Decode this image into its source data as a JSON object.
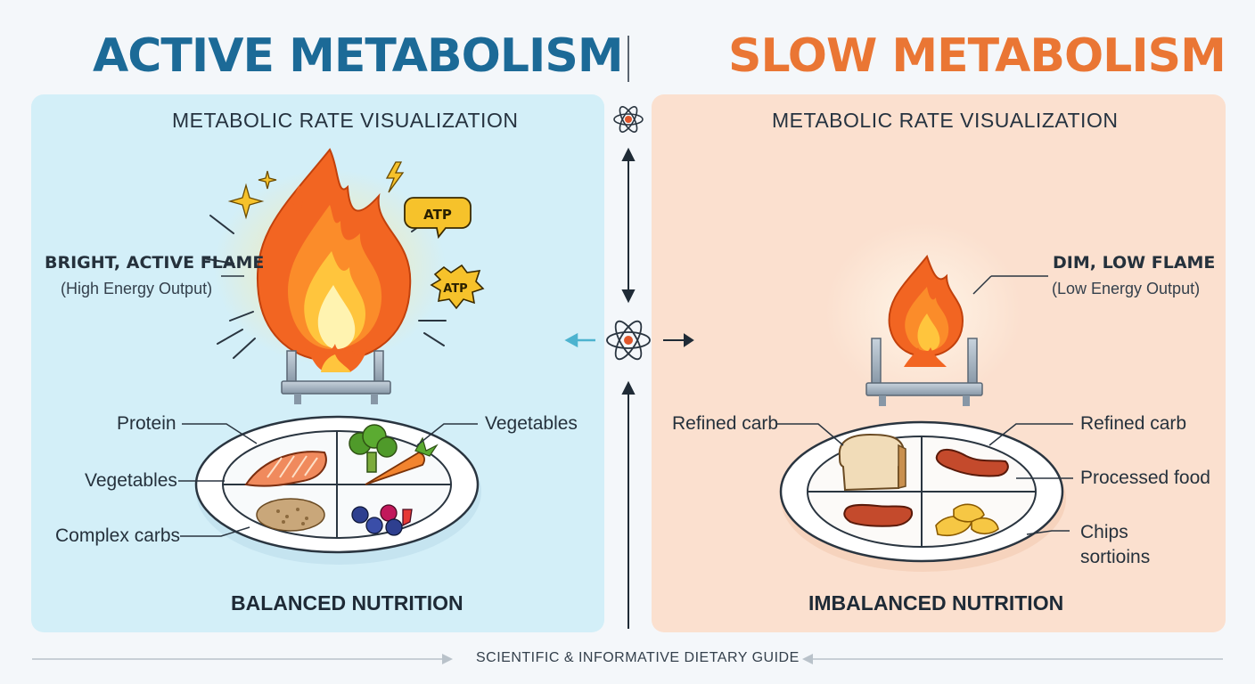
{
  "titles": {
    "left": "ACTIVE METABOLISM",
    "right": "SLOW METABOLISM"
  },
  "colors": {
    "active": "#1c6a97",
    "slow": "#ea7634",
    "panel_active": "#d3eff8",
    "panel_slow": "#fbe0cf"
  },
  "active": {
    "heading": "METABOLIC RATE VISUALIZATION",
    "flame_label": "BRIGHT, ACTIVE FLAME",
    "flame_sub": "(High Energy Output)",
    "atp": [
      "ATP",
      "ATP"
    ],
    "plate": {
      "protein": "Protein",
      "vegetables_left": "Vegetables",
      "complex_carbs": "Complex carbs",
      "vegetables_right": "Vegetables"
    },
    "footer": "BALANCED NUTRITION"
  },
  "slow": {
    "heading": "METABOLIC RATE VISUALIZATION",
    "flame_label": "DIM, LOW FLAME",
    "flame_sub": "(Low Energy Output)",
    "plate": {
      "refined_left": "Refined carb",
      "refined_right": "Refined carb",
      "processed": "Processed food",
      "chips_1": "Chips",
      "chips_2": "sortioins"
    },
    "footer": "IMBALANCED NUTRITION"
  },
  "footer": {
    "guide": "SCIENTIFIC & INFORMATIVE DIETARY GUIDE"
  },
  "icons": [
    "atom-icon",
    "flame-icon",
    "burner-icon",
    "plate-icon",
    "salmon-icon",
    "broccoli-icon",
    "carrot-icon",
    "grain-icon",
    "berries-icon",
    "bread-icon",
    "sausage-icon",
    "chips-icon",
    "sparkle-icon",
    "lightning-icon",
    "arrow-icon"
  ]
}
